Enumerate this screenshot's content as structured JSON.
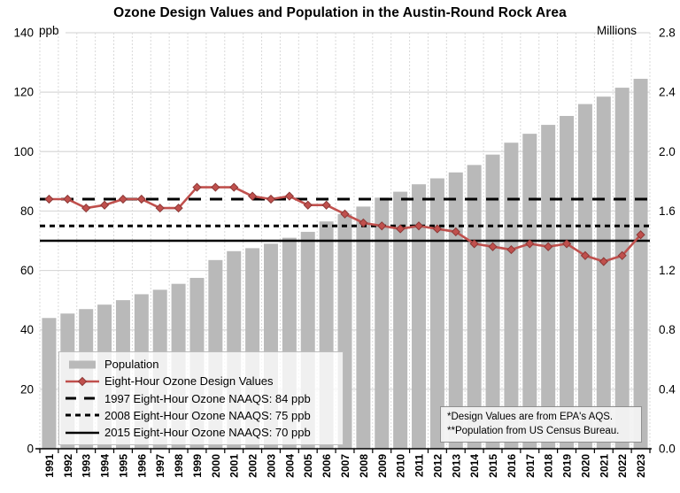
{
  "title": "Ozone Design Values and Population in the Austin-Round Rock Area",
  "legend": {
    "items": [
      {
        "label": "Population",
        "swatch": "bar-swatch"
      },
      {
        "label": "Eight-Hour Ozone Design Values",
        "swatch": "line-diamond-swatch"
      },
      {
        "label": "1997 Eight-Hour Ozone NAAQS: 84 ppb",
        "swatch": "long-dash-swatch"
      },
      {
        "label": "2008 Eight-Hour Ozone NAAQS: 75 ppb",
        "swatch": "short-dash-swatch"
      },
      {
        "label": "2015 Eight-Hour Ozone NAAQS: 70 ppb",
        "swatch": "solid-line-swatch"
      }
    ]
  },
  "footnotes": {
    "line1": "*Design Values are from EPA's AQS.",
    "line2": "**Population from US Census Bureau."
  },
  "colors": {
    "bar": "#b9b9b9",
    "line": "#c0504d",
    "line_edge": "#8c3836",
    "grid": "#d9d9d9",
    "reference": "#000000",
    "axis": "#000000"
  },
  "chart_data": {
    "type": "combo",
    "categories": [
      1991,
      1992,
      1993,
      1994,
      1995,
      1996,
      1997,
      1998,
      1999,
      2000,
      2001,
      2002,
      2003,
      2004,
      2005,
      2006,
      2007,
      2008,
      2009,
      2010,
      2011,
      2012,
      2013,
      2014,
      2015,
      2016,
      2017,
      2018,
      2019,
      2020,
      2021,
      2022,
      2023
    ],
    "series": [
      {
        "name": "Population",
        "type": "bar",
        "axis": "right",
        "unit": "millions",
        "values": [
          0.88,
          0.91,
          0.94,
          0.97,
          1.0,
          1.04,
          1.07,
          1.11,
          1.15,
          1.27,
          1.33,
          1.35,
          1.38,
          1.42,
          1.46,
          1.53,
          1.58,
          1.63,
          1.69,
          1.73,
          1.78,
          1.82,
          1.86,
          1.91,
          1.98,
          2.06,
          2.12,
          2.18,
          2.24,
          2.32,
          2.37,
          2.43,
          2.49
        ]
      },
      {
        "name": "Eight-Hour Ozone Design Values",
        "type": "line",
        "axis": "left",
        "unit": "ppb",
        "values": [
          84,
          84,
          81,
          82,
          84,
          84,
          81,
          81,
          88,
          88,
          88,
          85,
          84,
          85,
          82,
          82,
          79,
          76,
          75,
          74,
          75,
          74,
          73,
          69,
          68,
          67,
          69,
          68,
          69,
          65,
          63,
          65,
          72
        ]
      }
    ],
    "reference_lines": [
      {
        "label": "1997 Eight-Hour Ozone NAAQS: 84 ppb",
        "value": 84,
        "style": "long-dash"
      },
      {
        "label": "2008 Eight-Hour Ozone NAAQS: 75 ppb",
        "value": 75,
        "style": "short-dash"
      },
      {
        "label": "2015 Eight-Hour Ozone NAAQS: 70 ppb",
        "value": 70,
        "style": "solid"
      }
    ],
    "left_axis": {
      "label": "ppb",
      "range": [
        0,
        140
      ],
      "ticks": [
        0,
        20,
        40,
        60,
        80,
        100,
        120,
        140
      ]
    },
    "right_axis": {
      "label": "Millions",
      "range": [
        0,
        2.8
      ],
      "ticks": [
        0,
        0.4,
        0.8,
        1.2,
        1.6,
        2.0,
        2.4,
        2.8
      ]
    },
    "grid": true,
    "legend_position": "inside-bottom-left"
  }
}
